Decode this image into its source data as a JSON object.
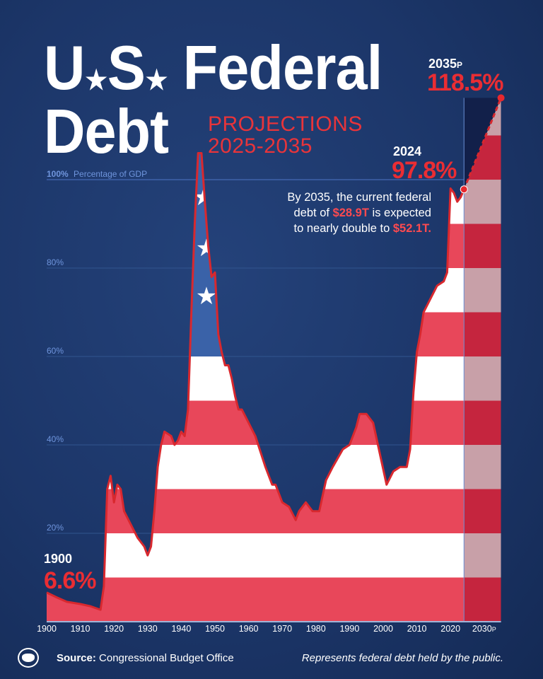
{
  "title": {
    "line1_a": "U",
    "line1_b": "S",
    "line1_c": "Federal",
    "line2": "Debt",
    "full": "U.S. Federal Debt"
  },
  "subtitle": {
    "line1": "PROJECTIONS",
    "line2": "2025-2035"
  },
  "callouts": {
    "start_year": "1900",
    "start_value": "6.6%",
    "current_year": "2024",
    "current_value": "97.8%",
    "proj_year": "2035",
    "proj_suffix": "P",
    "proj_value": "118.5%"
  },
  "note": {
    "p1": "By 2035, the current federal debt of ",
    "v1": "$28.9T",
    "p2": " is expected to nearly double to ",
    "v2": "$52.1T."
  },
  "footer": {
    "source_label": "Source:",
    "source": "Congressional Budget Office",
    "disclaimer": "Represents federal debt held by the public."
  },
  "colors": {
    "background": "#1c3669",
    "stripe_red": "#e8475a",
    "stripe_white": "#ffffff",
    "canton": "#3a62a8",
    "line": "#d8282e",
    "projection_red": "#c5253e",
    "projection_white": "#c8a0a8"
  },
  "chart_data": {
    "type": "area",
    "title": "U.S. Federal Debt",
    "ylabel": "Percentage of GDP",
    "ylim": [
      0,
      120
    ],
    "xlim": [
      1900,
      2035
    ],
    "yticks": [
      {
        "v": 100,
        "label": "100%",
        "extra": "Percentage of GDP"
      },
      {
        "v": 80,
        "label": "80%"
      },
      {
        "v": 60,
        "label": "60%"
      },
      {
        "v": 40,
        "label": "40%"
      },
      {
        "v": 20,
        "label": "20%"
      }
    ],
    "xticks": [
      "1900",
      "1910",
      "1920",
      "1930",
      "1940",
      "1950",
      "1960",
      "1970",
      "1980",
      "1990",
      "2000",
      "2010",
      "2020",
      "2030"
    ],
    "xtick_last_suffix": "P",
    "grid": true,
    "series": [
      {
        "x": [
          1900,
          1903,
          1906,
          1910,
          1913,
          1916,
          1917,
          1918,
          1919,
          1920,
          1921,
          1922,
          1923,
          1925,
          1927,
          1929,
          1930,
          1931,
          1932,
          1933,
          1934,
          1935,
          1937,
          1938,
          1939,
          1940,
          1941,
          1942,
          1943,
          1944,
          1945,
          1946,
          1947,
          1948,
          1949,
          1950,
          1951,
          1952,
          1953,
          1954,
          1955,
          1956,
          1957,
          1958,
          1960,
          1962,
          1965,
          1967,
          1968,
          1970,
          1972,
          1974,
          1975,
          1977,
          1979,
          1981,
          1983,
          1985,
          1988,
          1990,
          1992,
          1993,
          1995,
          1997,
          1999,
          2001,
          2003,
          2005,
          2007,
          2008,
          2009,
          2010,
          2011,
          2012,
          2014,
          2016,
          2018,
          2019,
          2020,
          2021,
          2022,
          2023,
          2024
        ],
        "y": [
          6.6,
          5.5,
          4.5,
          4,
          3.5,
          2.7,
          8,
          30,
          33,
          27,
          31,
          30,
          25,
          22,
          19,
          17,
          15,
          17,
          25,
          35,
          40,
          43,
          42,
          40,
          41,
          43,
          42,
          48,
          70,
          90,
          106,
          106,
          95,
          85,
          78,
          79,
          65,
          61,
          58,
          58,
          55,
          51,
          48,
          48,
          45,
          42,
          35,
          31,
          31,
          27,
          26,
          23,
          25,
          27,
          25,
          25,
          32,
          35,
          39,
          40,
          44,
          47,
          47,
          45,
          38,
          31,
          34,
          35,
          35,
          39,
          52,
          61,
          65,
          70,
          73,
          76,
          77,
          79,
          98,
          97,
          95,
          96,
          97.8
        ]
      },
      {
        "name": "Projection",
        "x": [
          2024,
          2035
        ],
        "y": [
          97.8,
          118.5
        ]
      }
    ]
  }
}
